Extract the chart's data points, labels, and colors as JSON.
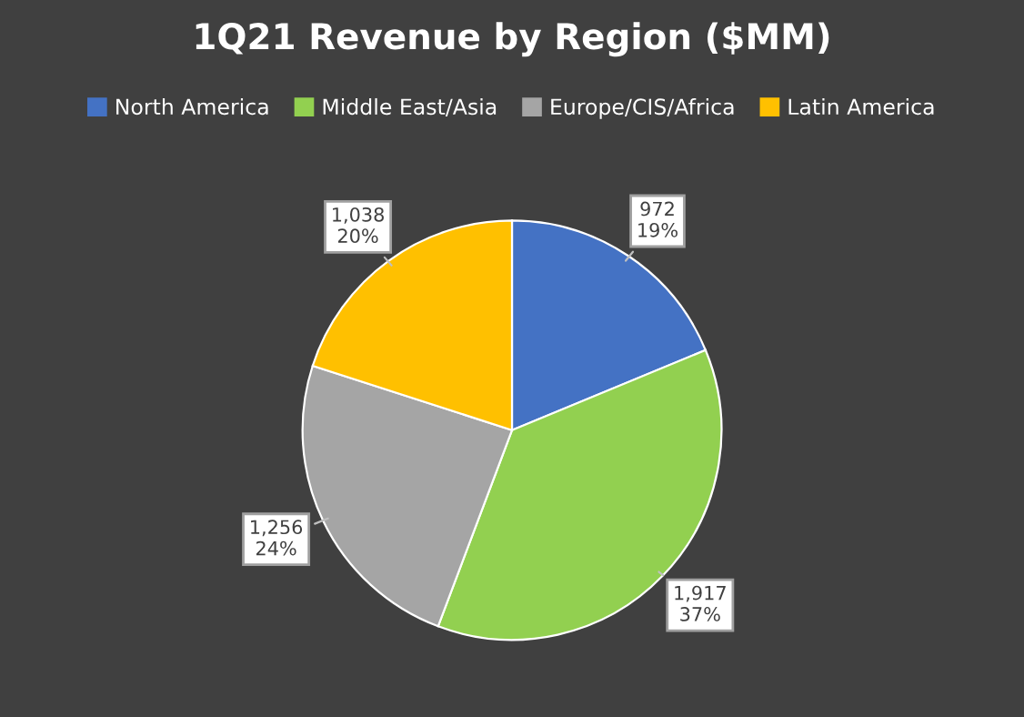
{
  "chart_data": {
    "type": "pie",
    "title": "1Q21 Revenue by Region ($MM)",
    "categories": [
      "North America",
      "Middle East/Asia",
      "Europe/CIS/Africa",
      "Latin America"
    ],
    "values": [
      972,
      1917,
      1256,
      1038
    ],
    "colors": [
      "#4472c4",
      "#92d050",
      "#a5a5a5",
      "#ffc000"
    ],
    "value_labels": [
      "972\n19%",
      "1,917\n37%",
      "1,256\n24%",
      "1,038\n20%"
    ],
    "legend": "top"
  }
}
